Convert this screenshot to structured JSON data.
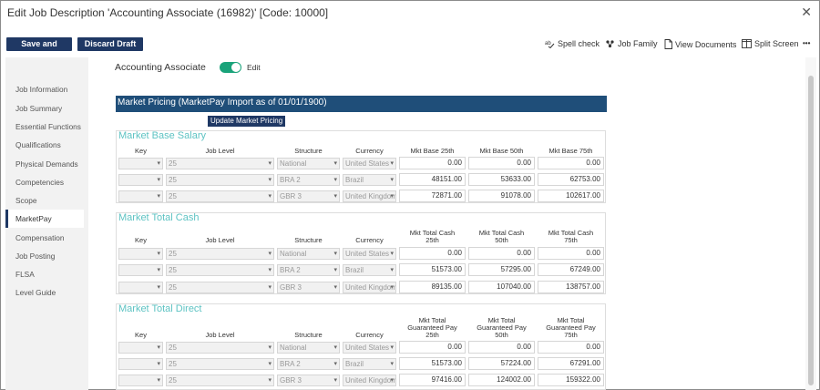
{
  "window": {
    "title": "Edit Job Description 'Accounting Associate (16982)'  [Code: 10000]"
  },
  "toolbar": {
    "save_close": "Save and Close",
    "discard_draft": "Discard Draft",
    "spell_check": "Spell check",
    "job_family": "Job Family",
    "view_documents": "View Documents",
    "split_screen": "Split Screen",
    "more": "•••"
  },
  "sidebar": {
    "items": [
      {
        "label": "Job Information"
      },
      {
        "label": "Job Summary"
      },
      {
        "label": "Essential Functions"
      },
      {
        "label": "Qualifications"
      },
      {
        "label": "Physical Demands"
      },
      {
        "label": "Competencies"
      },
      {
        "label": "Scope"
      },
      {
        "label": "MarketPay",
        "active": true
      },
      {
        "label": "Compensation"
      },
      {
        "label": "Job Posting"
      },
      {
        "label": "FLSA"
      },
      {
        "label": "Level Guide"
      }
    ]
  },
  "header": {
    "job_name": "Accounting Associate",
    "edit_label": "Edit",
    "edit_on": true
  },
  "market_pricing": {
    "title": "Market Pricing (MarketPay Import as of 01/01/1900)",
    "update_button": "Update Market Pricing"
  },
  "common_headers": {
    "key": "Key",
    "job_level": "Job Level",
    "structure": "Structure",
    "currency": "Currency"
  },
  "sections": {
    "base": {
      "title": "Market Base Salary",
      "h25": "Mkt Base 25th",
      "h50": "Mkt Base 50th",
      "h75": "Mkt Base 75th",
      "rows": [
        {
          "level": "25",
          "structure": "National",
          "currency": "United States",
          "v25": "0.00",
          "v50": "0.00",
          "v75": "0.00"
        },
        {
          "level": "25",
          "structure": "BRA 2",
          "currency": "Brazil",
          "v25": "48151.00",
          "v50": "53633.00",
          "v75": "62753.00"
        },
        {
          "level": "25",
          "structure": "GBR 3",
          "currency": "United Kingdom",
          "v25": "72871.00",
          "v50": "91078.00",
          "v75": "102617.00"
        }
      ]
    },
    "cash": {
      "title": "Market Total Cash",
      "h25": "Mkt Total Cash 25th",
      "h50": "Mkt Total Cash 50th",
      "h75": "Mkt Total Cash 75th",
      "rows": [
        {
          "level": "25",
          "structure": "National",
          "currency": "United States",
          "v25": "0.00",
          "v50": "0.00",
          "v75": "0.00"
        },
        {
          "level": "25",
          "structure": "BRA 2",
          "currency": "Brazil",
          "v25": "51573.00",
          "v50": "57295.00",
          "v75": "67249.00"
        },
        {
          "level": "25",
          "structure": "GBR 3",
          "currency": "United Kingdom",
          "v25": "89135.00",
          "v50": "107040.00",
          "v75": "138757.00"
        }
      ]
    },
    "direct": {
      "title": "Market Total Direct",
      "h25": "Mkt Total Guaranteed Pay 25th",
      "h50": "Mkt Total Guaranteed Pay 50th",
      "h75": "Mkt Total Guaranteed Pay 75th",
      "rows": [
        {
          "level": "25",
          "structure": "National",
          "currency": "United States",
          "v25": "0.00",
          "v50": "0.00",
          "v75": "0.00"
        },
        {
          "level": "25",
          "structure": "BRA 2",
          "currency": "Brazil",
          "v25": "51573.00",
          "v50": "57224.00",
          "v75": "67291.00"
        },
        {
          "level": "25",
          "structure": "GBR 3",
          "currency": "United Kingdom",
          "v25": "97416.00",
          "v50": "124002.00",
          "v75": "159322.00"
        }
      ]
    }
  },
  "colors": {
    "primary_button": "#1f3864",
    "section_header": "#1f4e79",
    "section_title": "#5ec3c3",
    "toggle_on": "#1aa37a"
  }
}
